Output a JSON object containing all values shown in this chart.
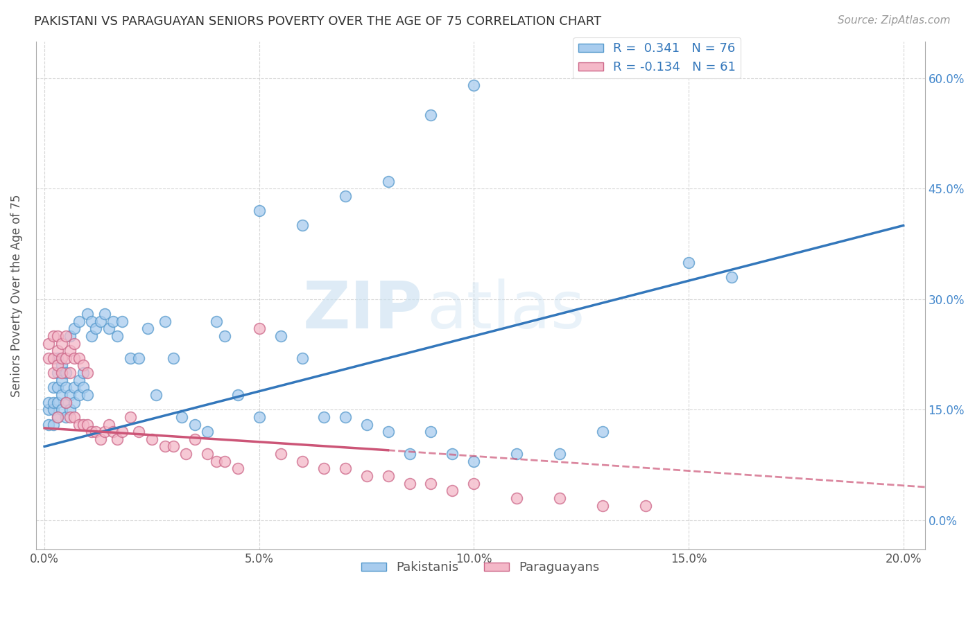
{
  "title": "PAKISTANI VS PARAGUAYAN SENIORS POVERTY OVER THE AGE OF 75 CORRELATION CHART",
  "source": "Source: ZipAtlas.com",
  "ylabel": "Seniors Poverty Over the Age of 75",
  "xlim": [
    -0.002,
    0.205
  ],
  "ylim": [
    -0.04,
    0.65
  ],
  "x_ticks": [
    0.0,
    0.05,
    0.1,
    0.15,
    0.2
  ],
  "x_tick_labels": [
    "0.0%",
    "5.0%",
    "10.0%",
    "15.0%",
    "20.0%"
  ],
  "y_ticks": [
    0.0,
    0.15,
    0.3,
    0.45,
    0.6
  ],
  "y_tick_labels": [
    "0.0%",
    "15.0%",
    "30.0%",
    "45.0%",
    "60.0%"
  ],
  "pakistani_color": "#a8ccee",
  "paraguayan_color": "#f4b8c8",
  "pakistani_edge": "#5599cc",
  "paraguayan_edge": "#cc6688",
  "trend_blue": "#3377bb",
  "trend_pink": "#cc5577",
  "R_pakistani": 0.341,
  "N_pakistani": 76,
  "R_paraguayan": -0.134,
  "N_paraguayan": 61,
  "watermark_zip": "ZIP",
  "watermark_atlas": "atlas",
  "pak_trend_x0": 0.0,
  "pak_trend_y0": 0.1,
  "pak_trend_x1": 0.2,
  "pak_trend_y1": 0.4,
  "par_trend_solid_x0": 0.0,
  "par_trend_solid_y0": 0.125,
  "par_trend_solid_x1": 0.08,
  "par_trend_solid_y1": 0.095,
  "par_trend_dash_x0": 0.08,
  "par_trend_dash_y0": 0.095,
  "par_trend_dash_x1": 0.205,
  "par_trend_dash_y1": 0.045,
  "pakistani_x": [
    0.001,
    0.001,
    0.001,
    0.002,
    0.002,
    0.002,
    0.002,
    0.003,
    0.003,
    0.003,
    0.003,
    0.003,
    0.004,
    0.004,
    0.004,
    0.004,
    0.005,
    0.005,
    0.005,
    0.005,
    0.006,
    0.006,
    0.006,
    0.007,
    0.007,
    0.007,
    0.008,
    0.008,
    0.008,
    0.009,
    0.009,
    0.01,
    0.01,
    0.011,
    0.011,
    0.012,
    0.013,
    0.014,
    0.015,
    0.016,
    0.017,
    0.018,
    0.02,
    0.022,
    0.024,
    0.026,
    0.028,
    0.03,
    0.032,
    0.035,
    0.038,
    0.04,
    0.042,
    0.045,
    0.05,
    0.055,
    0.06,
    0.065,
    0.07,
    0.075,
    0.08,
    0.085,
    0.09,
    0.095,
    0.1,
    0.11,
    0.12,
    0.13,
    0.05,
    0.06,
    0.07,
    0.08,
    0.09,
    0.1,
    0.15,
    0.16
  ],
  "pakistani_y": [
    0.13,
    0.15,
    0.16,
    0.13,
    0.15,
    0.16,
    0.18,
    0.14,
    0.16,
    0.18,
    0.2,
    0.22,
    0.15,
    0.17,
    0.19,
    0.21,
    0.14,
    0.16,
    0.18,
    0.2,
    0.15,
    0.17,
    0.25,
    0.16,
    0.18,
    0.26,
    0.17,
    0.19,
    0.27,
    0.18,
    0.2,
    0.17,
    0.28,
    0.25,
    0.27,
    0.26,
    0.27,
    0.28,
    0.26,
    0.27,
    0.25,
    0.27,
    0.22,
    0.22,
    0.26,
    0.17,
    0.27,
    0.22,
    0.14,
    0.13,
    0.12,
    0.27,
    0.25,
    0.17,
    0.14,
    0.25,
    0.22,
    0.14,
    0.14,
    0.13,
    0.12,
    0.09,
    0.12,
    0.09,
    0.08,
    0.09,
    0.09,
    0.12,
    0.42,
    0.4,
    0.44,
    0.46,
    0.55,
    0.59,
    0.35,
    0.33
  ],
  "paraguayan_x": [
    0.001,
    0.001,
    0.002,
    0.002,
    0.002,
    0.003,
    0.003,
    0.003,
    0.003,
    0.004,
    0.004,
    0.004,
    0.005,
    0.005,
    0.005,
    0.006,
    0.006,
    0.006,
    0.007,
    0.007,
    0.007,
    0.008,
    0.008,
    0.009,
    0.009,
    0.01,
    0.01,
    0.011,
    0.012,
    0.013,
    0.014,
    0.015,
    0.016,
    0.017,
    0.018,
    0.02,
    0.022,
    0.025,
    0.028,
    0.03,
    0.033,
    0.035,
    0.038,
    0.04,
    0.042,
    0.045,
    0.05,
    0.055,
    0.06,
    0.065,
    0.07,
    0.075,
    0.08,
    0.085,
    0.09,
    0.095,
    0.1,
    0.11,
    0.12,
    0.13,
    0.14
  ],
  "paraguayan_y": [
    0.22,
    0.24,
    0.2,
    0.22,
    0.25,
    0.21,
    0.23,
    0.25,
    0.14,
    0.2,
    0.22,
    0.24,
    0.16,
    0.22,
    0.25,
    0.2,
    0.23,
    0.14,
    0.22,
    0.24,
    0.14,
    0.22,
    0.13,
    0.21,
    0.13,
    0.2,
    0.13,
    0.12,
    0.12,
    0.11,
    0.12,
    0.13,
    0.12,
    0.11,
    0.12,
    0.14,
    0.12,
    0.11,
    0.1,
    0.1,
    0.09,
    0.11,
    0.09,
    0.08,
    0.08,
    0.07,
    0.26,
    0.09,
    0.08,
    0.07,
    0.07,
    0.06,
    0.06,
    0.05,
    0.05,
    0.04,
    0.05,
    0.03,
    0.03,
    0.02,
    0.02
  ]
}
